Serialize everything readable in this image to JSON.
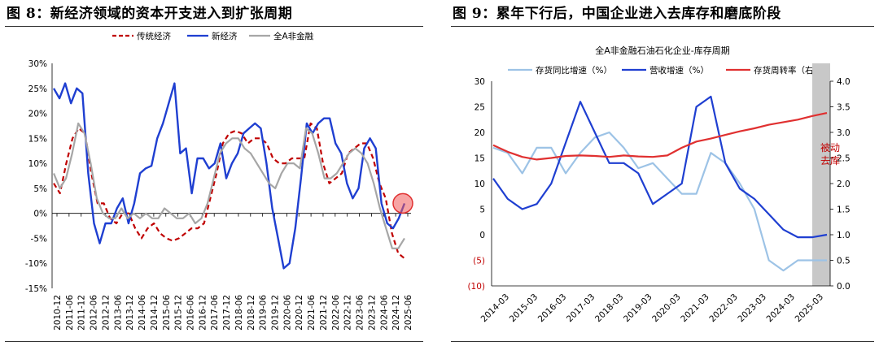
{
  "left": {
    "title": "图 8：新经济领域的资本开支进入到扩张周期",
    "legend": [
      "传统经济",
      "新经济",
      "全A非金融"
    ],
    "chart_data": {
      "type": "line",
      "y_ticks": [
        "30%",
        "25%",
        "20%",
        "15%",
        "10%",
        "5%",
        "0%",
        "-5%",
        "-10%",
        "-15%"
      ],
      "ylim": [
        -15,
        30
      ],
      "x_ticks": [
        "2010-12",
        "2011-06",
        "2011-12",
        "2012-06",
        "2012-12",
        "2013-06",
        "2013-12",
        "2014-06",
        "2014-12",
        "2015-06",
        "2015-12",
        "2016-06",
        "2016-12",
        "2017-06",
        "2017-12",
        "2018-06",
        "2018-12",
        "2019-06",
        "2019-12",
        "2020-06",
        "2020-12",
        "2021-06",
        "2021-12",
        "2022-06",
        "2022-12",
        "2023-06",
        "2023-12",
        "2024-06",
        "2024-12",
        "2025-06"
      ],
      "series": [
        {
          "name": "传统经济",
          "color": "#c00000",
          "dash": true,
          "values": [
            6,
            4,
            10,
            15,
            17,
            16,
            8,
            2,
            2,
            -1,
            -2,
            0,
            0,
            -3,
            -5,
            -3,
            -2,
            -4,
            -5,
            -5.5,
            -5,
            -4,
            -3,
            -3,
            -2,
            3,
            8,
            14,
            16,
            16.5,
            16,
            14,
            15,
            15,
            14,
            11,
            10,
            10,
            11,
            11,
            11,
            18,
            17,
            10,
            6,
            7,
            8,
            12,
            13,
            14,
            14,
            11,
            6,
            3,
            -4,
            -8,
            -9
          ]
        },
        {
          "name": "新经济",
          "color": "#1f3fd1",
          "dash": false,
          "values": [
            25,
            23,
            26,
            22,
            25,
            24,
            8,
            -2,
            -6,
            -2,
            -2,
            1,
            3,
            -2,
            2,
            8,
            9,
            9.5,
            15,
            18,
            22,
            26,
            12,
            13,
            4,
            11,
            11,
            9,
            10,
            14,
            7,
            10,
            12,
            16,
            17,
            18,
            17,
            10,
            1,
            -5,
            -11,
            -10,
            -3,
            7,
            18,
            16,
            18,
            19,
            19,
            14,
            12,
            6,
            3,
            5,
            13,
            15,
            13,
            2,
            -2,
            -3,
            -1,
            2
          ]
        },
        {
          "name": "全A非金融",
          "color": "#a6a6a6",
          "dash": false,
          "values": [
            8,
            5,
            7,
            12,
            18,
            16,
            10,
            3,
            0,
            -1,
            -1,
            1,
            -1,
            0,
            -1,
            0,
            -1,
            -1,
            1,
            0,
            -1,
            -1,
            0,
            -2,
            -1,
            2,
            7,
            12,
            14,
            15,
            15,
            13,
            12,
            10,
            8,
            6,
            5,
            8,
            10,
            10,
            9,
            17,
            16,
            12,
            7,
            7,
            8,
            10,
            12,
            13,
            12,
            10,
            6,
            1,
            -3,
            -7,
            -7,
            -5
          ]
        }
      ],
      "highlight": "red circle marker at latest 新经济 value"
    }
  },
  "right": {
    "title": "图 9：累年下行后，中国企业进入去库存和磨底阶段",
    "chart_title": "全A非金融石油石化企业-库存周期",
    "legend": [
      "存货同比增速（%）",
      "营收增速（%）",
      "存货周转率（右）"
    ],
    "annotation_line1": "被动",
    "annotation_line2": "去库",
    "chart_data": {
      "type": "line",
      "left_axis_ticks": [
        "30",
        "25",
        "20",
        "15",
        "10",
        "5",
        "0",
        "(5)",
        "(10)"
      ],
      "left_ylim": [
        -10,
        30
      ],
      "right_axis_ticks": [
        "4.0",
        "3.5",
        "3.0",
        "2.5",
        "2.0",
        "1.5",
        "1.0",
        "0.5",
        "0.0"
      ],
      "right_ylim": [
        0,
        4
      ],
      "x_ticks": [
        "2014-03",
        "2015-03",
        "2016-03",
        "2017-03",
        "2018-03",
        "2019-03",
        "2020-03",
        "2021-03",
        "2022-03",
        "2023-03",
        "2024-03",
        "2025-03"
      ],
      "series": [
        {
          "name": "存货同比增速（%）",
          "color": "#9dc3e6",
          "axis": "left",
          "values": [
            17,
            16,
            12,
            17,
            17,
            12,
            16,
            19,
            20,
            17,
            13,
            14,
            11,
            8,
            8,
            16,
            14,
            10,
            5,
            -5,
            -7,
            -5,
            -5,
            -5
          ]
        },
        {
          "name": "营收增速（%）",
          "color": "#1f3fd1",
          "axis": "left",
          "values": [
            11,
            7,
            5,
            6,
            10,
            18,
            26,
            20,
            14,
            14,
            12,
            6,
            8,
            10,
            25,
            27,
            14,
            9,
            7,
            4,
            1,
            -0.5,
            -0.5,
            0
          ]
        },
        {
          "name": "存货周转率（右）",
          "color": "#e03030",
          "axis": "right",
          "values": [
            2.75,
            2.62,
            2.52,
            2.47,
            2.5,
            2.54,
            2.55,
            2.54,
            2.52,
            2.55,
            2.53,
            2.52,
            2.55,
            2.7,
            2.82,
            2.88,
            2.95,
            3.02,
            3.08,
            3.15,
            3.2,
            3.25,
            3.32,
            3.38
          ]
        }
      ],
      "shaded_region": "latest period (被动去库)"
    }
  }
}
